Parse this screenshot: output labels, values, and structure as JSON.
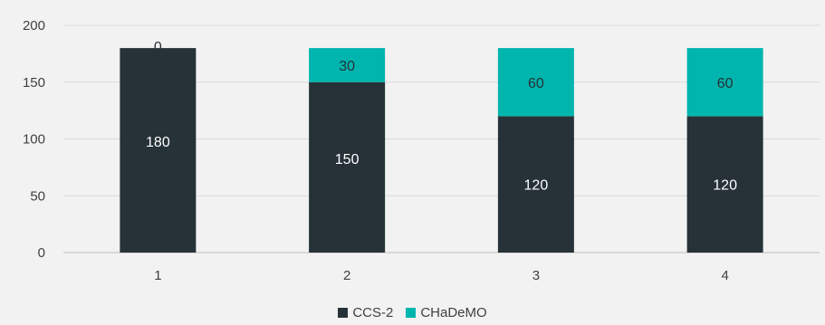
{
  "chart_data": {
    "type": "bar",
    "stacked": true,
    "categories": [
      "1",
      "2",
      "3",
      "4"
    ],
    "series": [
      {
        "name": "CCS-2",
        "color": "#263238",
        "label_color": "#ffffff",
        "values": [
          180,
          150,
          120,
          120
        ]
      },
      {
        "name": "CHaDeMO",
        "color": "#00b5ad",
        "label_color": "#263238",
        "values": [
          0,
          30,
          60,
          60
        ]
      }
    ],
    "y_ticks": [
      "0",
      "50",
      "100",
      "150",
      "200"
    ],
    "ylim": [
      0,
      200
    ],
    "grid": true,
    "legend_position": "bottom",
    "title": "",
    "xlabel": "",
    "ylabel": ""
  }
}
